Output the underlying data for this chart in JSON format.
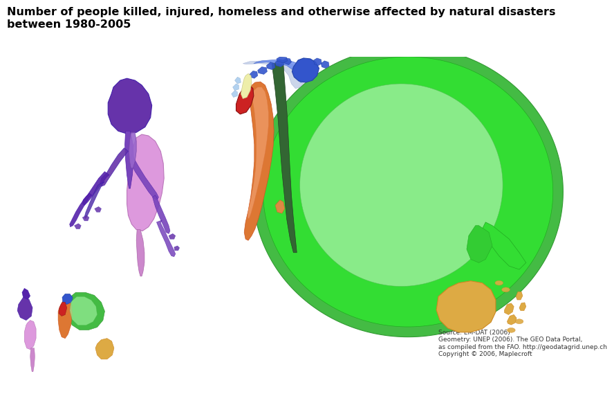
{
  "title_line1": "Number of people killed, injured, homeless and otherwise affected by natural disasters",
  "title_line2": "between 1980-2005",
  "title_fontsize": 11.5,
  "title_fontweight": "bold",
  "bg_color": "#b8cfe8",
  "border_color": "#888888",
  "source_text": "Source: EM-DAT (2006)\nGeometry: UNEP (2006). The GEO Data Portal,\nas compiled from the FAO. http://geodatagrid.unep.ch\nCopyright © 2006, Maplecroft",
  "colors": {
    "asia_outer": "#33cc33",
    "asia_inner": "#99ee99",
    "asia_dark": "#22aa22",
    "europe_blue": "#3355cc",
    "europe_light": "#6688ee",
    "na_dark": "#5533aa",
    "na_mid": "#7744bb",
    "sa_pink": "#cc88cc",
    "africa_orange": "#dd7733",
    "africa_light": "#ee9966",
    "africa_red": "#cc2222",
    "africa_cream": "#eeeebb",
    "africa_dark_green": "#336633",
    "australia_orange": "#ddaa44",
    "middle_east_yellow": "#eeee88",
    "sea_blue": "#88aacc",
    "inset_bg": "#b8cfe8"
  }
}
